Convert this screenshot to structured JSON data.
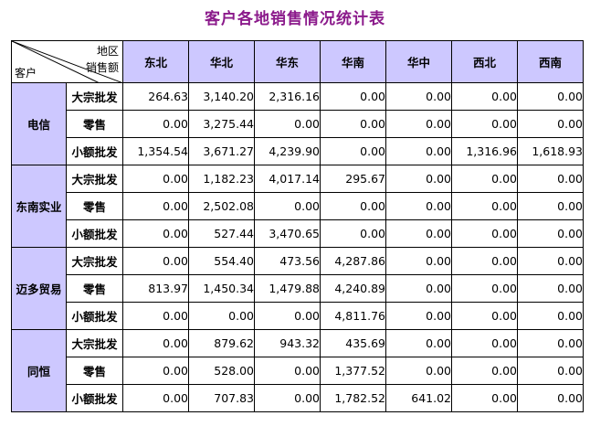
{
  "title": "客户各地销售情况统计表",
  "corner": {
    "region": "地区",
    "sales": "销售额",
    "customer": "客户"
  },
  "regions": [
    "东北",
    "华北",
    "华东",
    "华南",
    "华中",
    "西北",
    "西南"
  ],
  "customers": [
    {
      "name": "电信",
      "rows": [
        {
          "type": "大宗批发",
          "values": [
            "264.63",
            "3,140.20",
            "2,316.16",
            "0.00",
            "0.00",
            "0.00",
            "0.00"
          ]
        },
        {
          "type": "零售",
          "values": [
            "0.00",
            "3,275.44",
            "0.00",
            "0.00",
            "0.00",
            "0.00",
            "0.00"
          ]
        },
        {
          "type": "小额批发",
          "values": [
            "1,354.54",
            "3,671.27",
            "4,239.90",
            "0.00",
            "0.00",
            "1,316.96",
            "1,618.93"
          ]
        }
      ]
    },
    {
      "name": "东南实业",
      "rows": [
        {
          "type": "大宗批发",
          "values": [
            "0.00",
            "1,182.23",
            "4,017.14",
            "295.67",
            "0.00",
            "0.00",
            "0.00"
          ]
        },
        {
          "type": "零售",
          "values": [
            "0.00",
            "2,502.08",
            "0.00",
            "0.00",
            "0.00",
            "0.00",
            "0.00"
          ]
        },
        {
          "type": "小额批发",
          "values": [
            "0.00",
            "527.44",
            "3,470.65",
            "0.00",
            "0.00",
            "0.00",
            "0.00"
          ]
        }
      ]
    },
    {
      "name": "迈多贸易",
      "rows": [
        {
          "type": "大宗批发",
          "values": [
            "0.00",
            "554.40",
            "473.56",
            "4,287.86",
            "0.00",
            "0.00",
            "0.00"
          ]
        },
        {
          "type": "零售",
          "values": [
            "813.97",
            "1,450.34",
            "1,479.88",
            "4,240.89",
            "0.00",
            "0.00",
            "0.00"
          ]
        },
        {
          "type": "小额批发",
          "values": [
            "0.00",
            "0.00",
            "0.00",
            "4,811.76",
            "0.00",
            "0.00",
            "0.00"
          ]
        }
      ]
    },
    {
      "name": "同恒",
      "rows": [
        {
          "type": "大宗批发",
          "values": [
            "0.00",
            "879.62",
            "943.32",
            "435.69",
            "0.00",
            "0.00",
            "0.00"
          ]
        },
        {
          "type": "零售",
          "values": [
            "0.00",
            "528.00",
            "0.00",
            "1,377.52",
            "0.00",
            "0.00",
            "0.00"
          ]
        },
        {
          "type": "小额批发",
          "values": [
            "0.00",
            "707.83",
            "0.00",
            "1,782.52",
            "641.02",
            "0.00",
            "0.00"
          ]
        }
      ]
    }
  ],
  "colors": {
    "header_bg": "#cdc8ff",
    "title": "#8b1a8b",
    "border": "#000000"
  }
}
